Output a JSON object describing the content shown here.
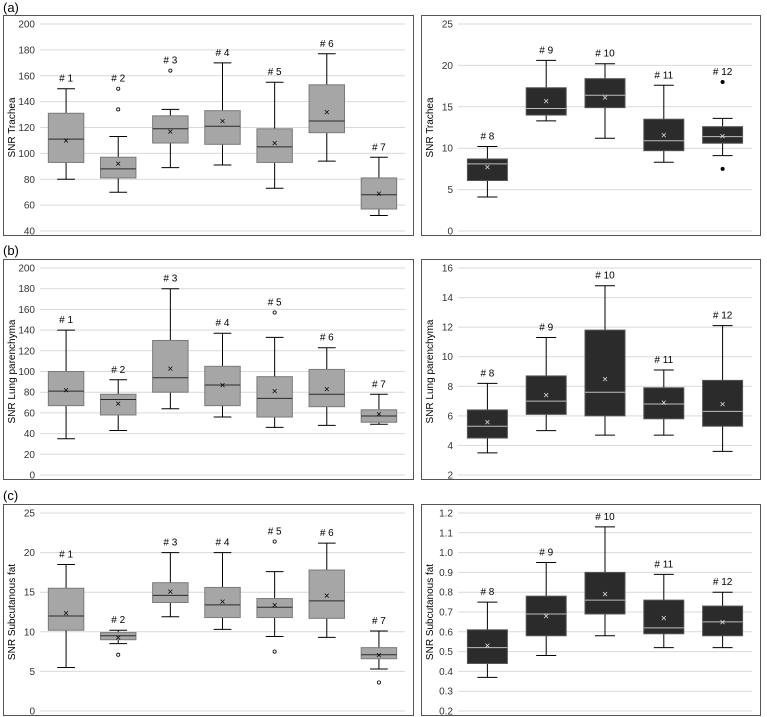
{
  "sections": [
    {
      "label": "(a)"
    },
    {
      "label": "(b)"
    },
    {
      "label": "(c)"
    }
  ],
  "colors": {
    "light_box": "#a6a6a6",
    "dark_box": "#2b2b2b",
    "grid": "#d9d9d9",
    "stroke": "#000000"
  },
  "chart_data": [
    {
      "type": "box",
      "section": "(a)",
      "ylabel": "SNR Trachea",
      "ylim": [
        40,
        200
      ],
      "yticks": [
        40,
        60,
        80,
        100,
        120,
        140,
        160,
        180,
        200
      ],
      "box_color": "light",
      "grid": true,
      "boxes": [
        {
          "label": "# 1",
          "min": 80,
          "q1": 93,
          "median": 111,
          "q3": 131,
          "max": 150,
          "mean": 110,
          "outliers": []
        },
        {
          "label": "# 2",
          "min": 70,
          "q1": 81,
          "median": 88,
          "q3": 97,
          "max": 113,
          "mean": 92,
          "outliers": [
            134,
            150
          ]
        },
        {
          "label": "# 3",
          "min": 89,
          "q1": 108,
          "median": 119,
          "q3": 129,
          "max": 134,
          "mean": 117,
          "outliers": [
            164
          ]
        },
        {
          "label": "# 4",
          "min": 91,
          "q1": 107,
          "median": 121,
          "q3": 133,
          "max": 170,
          "mean": 125,
          "outliers": []
        },
        {
          "label": "# 5",
          "min": 73,
          "q1": 93,
          "median": 105,
          "q3": 119,
          "max": 155,
          "mean": 108,
          "outliers": []
        },
        {
          "label": "# 6",
          "min": 94,
          "q1": 116,
          "median": 125,
          "q3": 153,
          "max": 177,
          "mean": 132,
          "outliers": []
        },
        {
          "label": "# 7",
          "min": 52,
          "q1": 57,
          "median": 68,
          "q3": 81,
          "max": 97,
          "mean": 69,
          "outliers": []
        }
      ]
    },
    {
      "type": "box",
      "section": "(a)",
      "ylabel": "SNR Trachea",
      "ylim": [
        0,
        25
      ],
      "yticks": [
        0,
        5,
        10,
        15,
        20,
        25
      ],
      "box_color": "dark",
      "grid": true,
      "boxes": [
        {
          "label": "# 8",
          "min": 4.1,
          "q1": 6.1,
          "median": 8.1,
          "q3": 8.7,
          "max": 10.2,
          "mean": 7.7,
          "outliers": []
        },
        {
          "label": "# 9",
          "min": 13.3,
          "q1": 14,
          "median": 14.8,
          "q3": 17.3,
          "max": 20.6,
          "mean": 15.7,
          "outliers": []
        },
        {
          "label": "# 10",
          "min": 11.2,
          "q1": 14.9,
          "median": 16.4,
          "q3": 18.4,
          "max": 20.2,
          "mean": 16.1,
          "outliers": []
        },
        {
          "label": "# 11",
          "min": 8.3,
          "q1": 9.7,
          "median": 10.9,
          "q3": 13.5,
          "max": 17.6,
          "mean": 11.6,
          "outliers": []
        },
        {
          "label": "# 12",
          "min": 9.1,
          "q1": 10.6,
          "median": 11.4,
          "q3": 12.6,
          "max": 13.6,
          "mean": 11.5,
          "outliers": [
            18,
            7.5
          ]
        }
      ]
    },
    {
      "type": "box",
      "section": "(b)",
      "ylabel": "SNR Lung parenchyma",
      "ylim": [
        0,
        200
      ],
      "yticks": [
        0,
        20,
        40,
        60,
        80,
        100,
        120,
        140,
        160,
        180,
        200
      ],
      "box_color": "light",
      "grid": true,
      "boxes": [
        {
          "label": "# 1",
          "min": 35,
          "q1": 67,
          "median": 81,
          "q3": 100,
          "max": 140,
          "mean": 82,
          "outliers": []
        },
        {
          "label": "# 2",
          "min": 43,
          "q1": 58,
          "median": 73,
          "q3": 78,
          "max": 92,
          "mean": 69,
          "outliers": []
        },
        {
          "label": "# 3",
          "min": 64,
          "q1": 80,
          "median": 94,
          "q3": 130,
          "max": 180,
          "mean": 103,
          "outliers": []
        },
        {
          "label": "# 4",
          "min": 56,
          "q1": 67,
          "median": 87,
          "q3": 105,
          "max": 137,
          "mean": 87,
          "outliers": []
        },
        {
          "label": "# 5",
          "min": 46,
          "q1": 56,
          "median": 74,
          "q3": 95,
          "max": 133,
          "mean": 81,
          "outliers": [
            157
          ]
        },
        {
          "label": "# 6",
          "min": 48,
          "q1": 66,
          "median": 78,
          "q3": 102,
          "max": 123,
          "mean": 83,
          "outliers": []
        },
        {
          "label": "# 7",
          "min": 49,
          "q1": 51,
          "median": 57,
          "q3": 63,
          "max": 78,
          "mean": 59,
          "outliers": []
        }
      ]
    },
    {
      "type": "box",
      "section": "(b)",
      "ylabel": "SNR Lung parenchyma",
      "ylim": [
        2,
        16
      ],
      "yticks": [
        2,
        4,
        6,
        8,
        10,
        12,
        14,
        16
      ],
      "box_color": "dark",
      "grid": true,
      "boxes": [
        {
          "label": "# 8",
          "min": 3.5,
          "q1": 4.5,
          "median": 5.3,
          "q3": 6.4,
          "max": 8.2,
          "mean": 5.6,
          "outliers": []
        },
        {
          "label": "# 9",
          "min": 5,
          "q1": 6.1,
          "median": 7,
          "q3": 8.7,
          "max": 11.3,
          "mean": 7.4,
          "outliers": []
        },
        {
          "label": "# 10",
          "min": 4.7,
          "q1": 6,
          "median": 7.6,
          "q3": 11.8,
          "max": 14.8,
          "mean": 8.5,
          "outliers": []
        },
        {
          "label": "# 11",
          "min": 4.7,
          "q1": 5.8,
          "median": 6.8,
          "q3": 7.9,
          "max": 9.1,
          "mean": 6.9,
          "outliers": []
        },
        {
          "label": "# 12",
          "min": 3.6,
          "q1": 5.3,
          "median": 6.3,
          "q3": 8.4,
          "max": 12.1,
          "mean": 6.8,
          "outliers": []
        }
      ]
    },
    {
      "type": "box",
      "section": "(c)",
      "ylabel": "SNR Subcutanous fat",
      "ylim": [
        0,
        25
      ],
      "yticks": [
        0,
        5,
        10,
        15,
        20,
        25
      ],
      "box_color": "light",
      "grid": true,
      "boxes": [
        {
          "label": "# 1",
          "min": 5.5,
          "q1": 10.2,
          "median": 12,
          "q3": 15.5,
          "max": 18.5,
          "mean": 12.4,
          "outliers": []
        },
        {
          "label": "# 2",
          "min": 8.5,
          "q1": 9,
          "median": 9.5,
          "q3": 9.9,
          "max": 10.2,
          "mean": 9.3,
          "outliers": [
            7.1
          ]
        },
        {
          "label": "# 3",
          "min": 11.9,
          "q1": 13.7,
          "median": 14.6,
          "q3": 16.2,
          "max": 20,
          "mean": 15.1,
          "outliers": []
        },
        {
          "label": "# 4",
          "min": 10.3,
          "q1": 11.8,
          "median": 13.4,
          "q3": 15.6,
          "max": 20,
          "mean": 13.8,
          "outliers": []
        },
        {
          "label": "# 5",
          "min": 9.4,
          "q1": 11.8,
          "median": 13.1,
          "q3": 14.2,
          "max": 17.6,
          "mean": 13.4,
          "outliers": [
            21.4,
            7.5
          ]
        },
        {
          "label": "# 6",
          "min": 9.3,
          "q1": 11.7,
          "median": 13.9,
          "q3": 17.8,
          "max": 21.2,
          "mean": 14.6,
          "outliers": []
        },
        {
          "label": "# 7",
          "min": 5.3,
          "q1": 6.6,
          "median": 7.1,
          "q3": 8,
          "max": 10.1,
          "mean": 7.1,
          "outliers": [
            3.6
          ]
        }
      ]
    },
    {
      "type": "box",
      "section": "(c)",
      "ylabel": "SNR Subcutanous fat",
      "ylim": [
        0.2,
        1.2
      ],
      "yticks": [
        0.2,
        0.3,
        0.4,
        0.5,
        0.6,
        0.7,
        0.8,
        0.9,
        1.0,
        1.1,
        1.2
      ],
      "box_color": "dark",
      "grid": true,
      "boxes": [
        {
          "label": "# 8",
          "min": 0.37,
          "q1": 0.44,
          "median": 0.52,
          "q3": 0.61,
          "max": 0.75,
          "mean": 0.53,
          "outliers": []
        },
        {
          "label": "# 9",
          "min": 0.48,
          "q1": 0.58,
          "median": 0.69,
          "q3": 0.78,
          "max": 0.95,
          "mean": 0.68,
          "outliers": []
        },
        {
          "label": "# 10",
          "min": 0.58,
          "q1": 0.69,
          "median": 0.76,
          "q3": 0.9,
          "max": 1.13,
          "mean": 0.79,
          "outliers": []
        },
        {
          "label": "# 11",
          "min": 0.52,
          "q1": 0.59,
          "median": 0.62,
          "q3": 0.76,
          "max": 0.89,
          "mean": 0.67,
          "outliers": []
        },
        {
          "label": "# 12",
          "min": 0.52,
          "q1": 0.58,
          "median": 0.65,
          "q3": 0.73,
          "max": 0.8,
          "mean": 0.65,
          "outliers": []
        }
      ]
    }
  ]
}
